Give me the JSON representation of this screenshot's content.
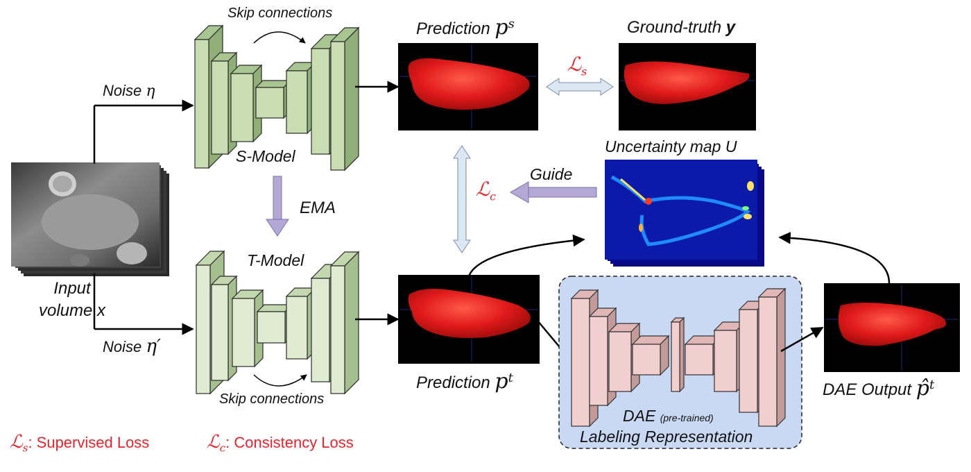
{
  "input": {
    "label_line1": "Input",
    "label_line2": "volume x"
  },
  "noise_top": {
    "text": "Noise",
    "symbol": "η"
  },
  "noise_bottom": {
    "text": "Noise",
    "symbol": "η′"
  },
  "s_model": {
    "label": "S-Model",
    "skip_label": "Skip connections"
  },
  "t_model": {
    "label": "T-Model",
    "skip_label": "Skip connections"
  },
  "ema": {
    "label": "EMA"
  },
  "prediction_s": {
    "text": "Prediction",
    "symbol": "p",
    "sup": "s"
  },
  "prediction_t": {
    "text": "Prediction",
    "symbol": "p",
    "sup": "t"
  },
  "ground_truth": {
    "text": "Ground-truth",
    "symbol": "y"
  },
  "uncertainty": {
    "text": "Uncertainty map U"
  },
  "guide": {
    "label": "Guide"
  },
  "loss_s": {
    "symbol": "ℒ",
    "sub": "s"
  },
  "loss_c": {
    "symbol": "ℒ",
    "sub": "c"
  },
  "dae": {
    "label": "DAE",
    "note": "(pre-trained)",
    "caption": "Labeling Representation"
  },
  "dae_output": {
    "text": "DAE Output",
    "symbol": "p̂",
    "sup": "t"
  },
  "legend": {
    "ls_symbol": "ℒ",
    "ls_sub": "s",
    "ls_text": ": Supervised Loss",
    "lc_symbol": "ℒ",
    "lc_sub": "c",
    "lc_text": ": Consistency Loss"
  },
  "colors": {
    "s_model_fill": "#c9ddb2",
    "t_model_fill": "#dfecd1",
    "dae_fill": "#f2cfcf",
    "dae_panel": "#c9d9f3",
    "ema_arrow": "#b3a8d6",
    "loss_arrow": "#dbe7f3",
    "segmentation": "#e02020",
    "loss_red": "#e3242b"
  }
}
